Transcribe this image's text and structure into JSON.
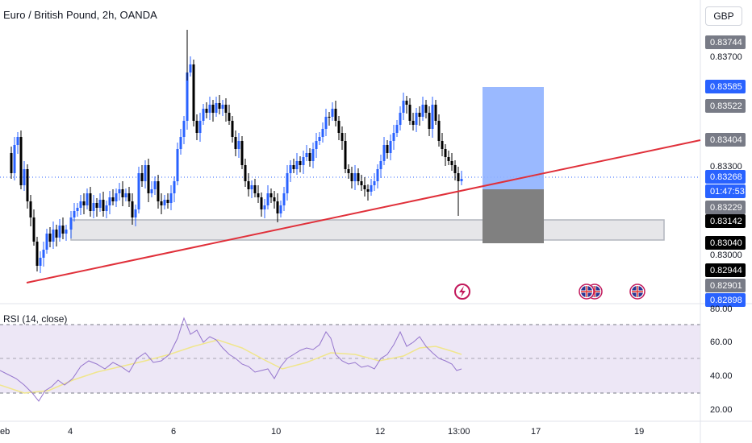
{
  "header": {
    "title": "Euro / British Pound, 2h, OANDA",
    "currency_button": "GBP"
  },
  "price_axis": {
    "ticks": [
      "0.83700",
      "0.83300",
      "0.83000"
    ],
    "tags": [
      {
        "label": "0.83744",
        "color": "#787b86"
      },
      {
        "label": "0.83585",
        "color": "#2962ff"
      },
      {
        "label": "0.83522",
        "color": "#787b86"
      },
      {
        "label": "0.83404",
        "color": "#787b86"
      },
      {
        "label": "0.83268",
        "color": "#2962ff"
      },
      {
        "label": "01:47:53",
        "color": "#2962ff"
      },
      {
        "label": "0.83229",
        "color": "#787b86"
      },
      {
        "label": "0.83142",
        "color": "#000000"
      },
      {
        "label": "0.83040",
        "color": "#000000"
      },
      {
        "label": "0.82944",
        "color": "#000000"
      },
      {
        "label": "0.82901",
        "color": "#787b86"
      },
      {
        "label": "0.82898",
        "color": "#2962ff"
      }
    ]
  },
  "rsi": {
    "label": "RSI (14, close)",
    "ticks": [
      "80.00",
      "60.00",
      "40.00",
      "20.00"
    ],
    "upper_band": 70,
    "middle_band": 50,
    "lower_band": 30
  },
  "time_axis": {
    "labels": [
      "eb",
      "4",
      "6",
      "10",
      "12",
      "13:00",
      "17",
      "19"
    ]
  },
  "events": [
    {
      "icon": "lightning-event-icon"
    },
    {
      "icon": "uk-flag-icon"
    },
    {
      "icon": "uk-flag-icon"
    },
    {
      "icon": "uk-flag-icon"
    }
  ],
  "colors": {
    "bull": "#2962ff",
    "bear": "#000000",
    "trendline": "#e0303a",
    "zone_fill": "#e6e6e9",
    "target_box": "#8fb1ff",
    "stop_box": "#808080",
    "rsi_line": "#9575cd",
    "rsi_ma": "#f0e68c",
    "rsi_band": "#ede7f6"
  },
  "chart_data": {
    "type": "candlestick",
    "instrument": "EUR/GBP",
    "interval": "2h",
    "y_range": [
      0.8288,
      0.838
    ],
    "current_price": 0.83268
  }
}
